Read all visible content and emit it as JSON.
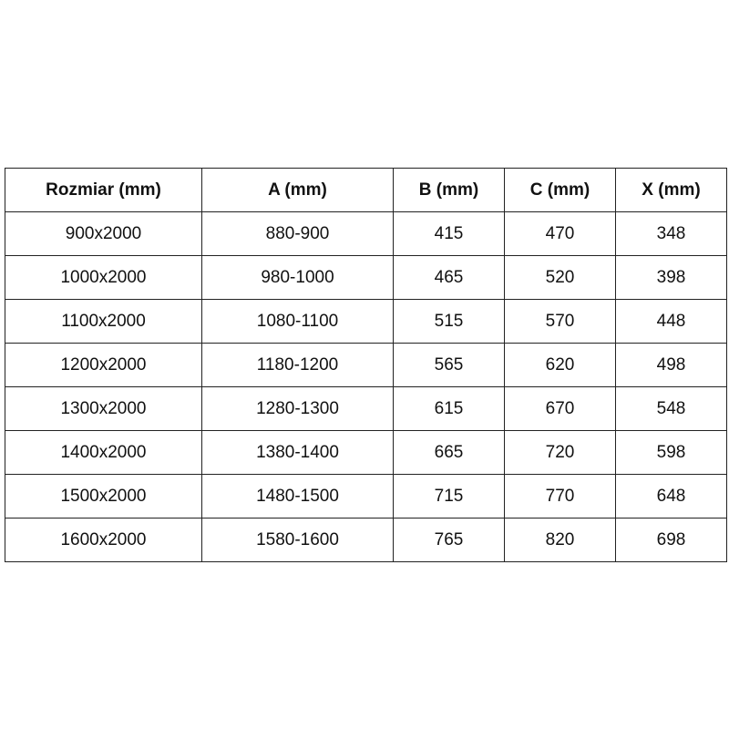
{
  "table": {
    "headers": [
      "Rozmiar (mm)",
      "A (mm)",
      "B (mm)",
      "C (mm)",
      "X (mm)"
    ],
    "rows": [
      [
        "900x2000",
        "880-900",
        "415",
        "470",
        "348"
      ],
      [
        "1000x2000",
        "980-1000",
        "465",
        "520",
        "398"
      ],
      [
        "1100x2000",
        "1080-1100",
        "515",
        "570",
        "448"
      ],
      [
        "1200x2000",
        "1180-1200",
        "565",
        "620",
        "498"
      ],
      [
        "1300x2000",
        "1280-1300",
        "615",
        "670",
        "548"
      ],
      [
        "1400x2000",
        "1380-1400",
        "665",
        "720",
        "598"
      ],
      [
        "1500x2000",
        "1480-1500",
        "715",
        "770",
        "648"
      ],
      [
        "1600x2000",
        "1580-1600",
        "765",
        "820",
        "698"
      ]
    ]
  }
}
